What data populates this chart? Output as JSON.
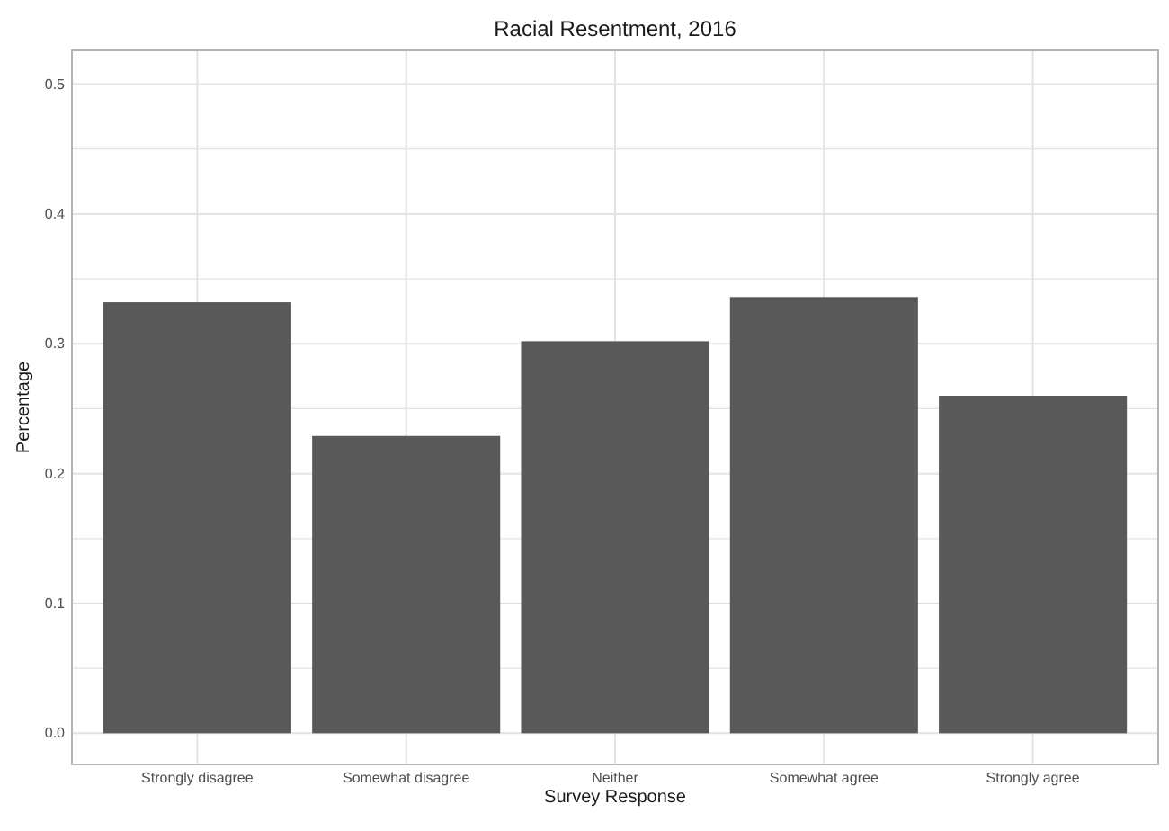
{
  "chart_data": {
    "type": "bar",
    "title": "Racial Resentment, 2016",
    "xlabel": "Survey Response",
    "ylabel": "Percentage",
    "categories": [
      "Strongly disagree",
      "Somewhat disagree",
      "Neither",
      "Somewhat agree",
      "Strongly agree"
    ],
    "values": [
      0.332,
      0.229,
      0.302,
      0.336,
      0.26
    ],
    "color": "#595959",
    "ylim": [
      -0.024,
      0.526
    ],
    "yticks": [
      {
        "value": 0,
        "label": "0.0"
      },
      {
        "value": 0.05,
        "label": null
      },
      0.1,
      {
        "value": 0.15,
        "label": null
      },
      0.2,
      {
        "value": 0.25,
        "label": null
      },
      0.3,
      {
        "value": 0.35,
        "label": null
      },
      0.4,
      {
        "value": 0.45,
        "label": null
      },
      0.5
    ],
    "grid": true
  }
}
